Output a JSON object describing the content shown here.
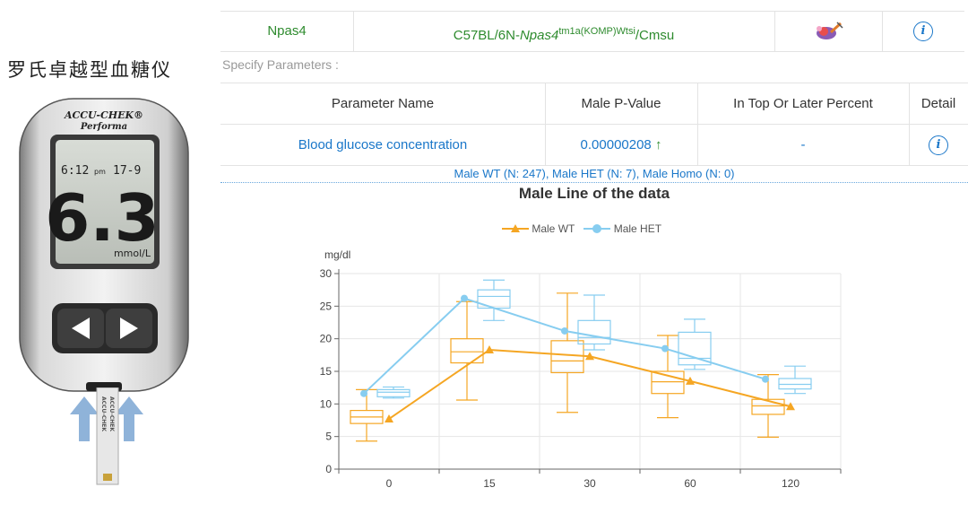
{
  "meter": {
    "title": "罗氏卓越型血糖仪",
    "brand_line1": "ACCU-CHEK®",
    "brand_line2": "Performa",
    "time": "6:12",
    "pm": "pm",
    "date": "17-9",
    "reading": "6.3",
    "unit": "mmol/L",
    "strip_text": "ACCU-CHEK"
  },
  "gene": {
    "symbol": "Npas4",
    "allele_prefix": "C57BL/6N-",
    "allele_gene": "Npas4",
    "allele_sup": "tm1a(KOMP)Wtsi",
    "allele_suffix": "/Cmsu"
  },
  "specify_label": "Specify Parameters :",
  "table": {
    "headers": [
      "Parameter Name",
      "Male P-Value",
      "In Top Or Later Percent",
      "Detail"
    ],
    "row": {
      "parameter": "Blood glucose concentration",
      "p_value": "0.00000208",
      "arrow": "↑",
      "percent": "-"
    }
  },
  "summary": "Male WT (N: 247), Male HET (N: 7), Male Homo (N: 0)",
  "chart_data": {
    "type": "line",
    "title": "Male Line of the data",
    "ylabel": "mg/dl",
    "xlabel": "",
    "categories": [
      "0",
      "15",
      "30",
      "60",
      "120"
    ],
    "ylim": [
      0,
      30
    ],
    "yticks": [
      0,
      5,
      10,
      15,
      20,
      25,
      30
    ],
    "grid": true,
    "legend": "top",
    "series": [
      {
        "name": "Male WT",
        "color": "#f5a623",
        "marker": "triangle",
        "values": [
          7.7,
          18.3,
          17.3,
          13.5,
          9.6
        ],
        "box": [
          {
            "min": 4.3,
            "q1": 7.0,
            "median": 8.0,
            "q3": 9.0,
            "max": 12.2
          },
          {
            "min": 10.6,
            "q1": 16.3,
            "median": 18.0,
            "q3": 20.0,
            "max": 25.7
          },
          {
            "min": 8.7,
            "q1": 14.8,
            "median": 16.6,
            "q3": 19.7,
            "max": 27.0
          },
          {
            "min": 7.9,
            "q1": 11.6,
            "median": 13.4,
            "q3": 15.0,
            "max": 20.5
          },
          {
            "min": 4.9,
            "q1": 8.4,
            "median": 9.7,
            "q3": 10.7,
            "max": 14.5
          }
        ]
      },
      {
        "name": "Male HET",
        "color": "#87cdf0",
        "marker": "circle",
        "values": [
          11.6,
          26.2,
          21.2,
          18.5,
          13.8
        ],
        "box": [
          {
            "min": 10.9,
            "q1": 11.1,
            "median": 11.8,
            "q3": 12.2,
            "max": 12.6
          },
          {
            "min": 22.8,
            "q1": 24.7,
            "median": 26.5,
            "q3": 27.5,
            "max": 29.0
          },
          {
            "min": 18.3,
            "q1": 19.2,
            "median": 20.2,
            "q3": 22.8,
            "max": 26.7
          },
          {
            "min": 15.3,
            "q1": 16.0,
            "median": 17.0,
            "q3": 21.0,
            "max": 23.0
          },
          {
            "min": 11.6,
            "q1": 12.3,
            "median": 13.0,
            "q3": 13.9,
            "max": 15.8
          }
        ]
      }
    ]
  }
}
